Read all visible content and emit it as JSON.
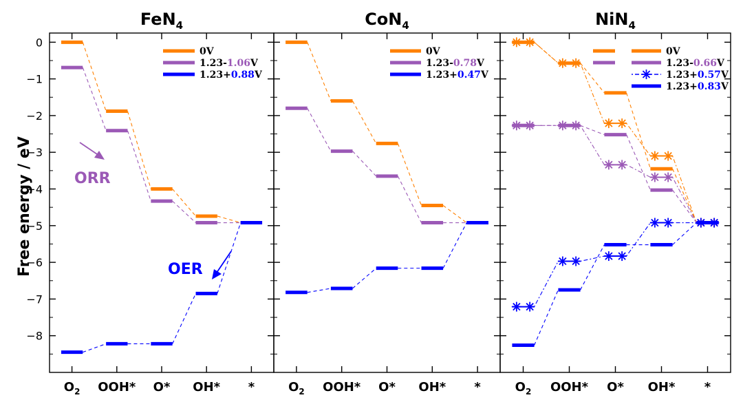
{
  "figure": {
    "ylabel": "Free energy / eV"
  },
  "chart_data": [
    {
      "type": "line",
      "title": {
        "main": "FeN",
        "sub": "4"
      },
      "categories": [
        {
          "main": "O",
          "sub": "2"
        },
        {
          "main": "OOH*",
          "sub": ""
        },
        {
          "main": "O*",
          "sub": ""
        },
        {
          "main": "OH*",
          "sub": ""
        },
        {
          "main": "*",
          "sub": ""
        }
      ],
      "ylim": [
        -9,
        0.25
      ],
      "yticks": [
        0,
        -1,
        -2,
        -3,
        -4,
        -5,
        -6,
        -7,
        -8
      ],
      "series": [
        {
          "name": {
            "prefix": "0V",
            "value": "",
            "suffix": ""
          },
          "color": "#ff8000",
          "marker": "bar",
          "values": [
            0,
            -1.88,
            -4.0,
            -4.74,
            -4.92
          ]
        },
        {
          "name": {
            "prefix": "1.23-",
            "value": "1.06",
            "suffix": "V"
          },
          "color": "#9b59b6",
          "marker": "bar",
          "values": [
            -0.69,
            -2.41,
            -4.33,
            -4.92,
            -4.92
          ]
        },
        {
          "name": {
            "prefix": "1.23+",
            "value": "0.88",
            "suffix": "V"
          },
          "color": "#0000ff",
          "marker": "bar",
          "values": [
            -8.45,
            -8.22,
            -8.22,
            -6.85,
            -4.92
          ]
        }
      ],
      "annotations": [
        {
          "text": "ORR",
          "color": "#9b59b6"
        },
        {
          "text": "OER",
          "color": "#0000ff"
        }
      ]
    },
    {
      "type": "line",
      "title": {
        "main": "CoN",
        "sub": "4"
      },
      "categories": [
        {
          "main": "O",
          "sub": "2"
        },
        {
          "main": "OOH*",
          "sub": ""
        },
        {
          "main": "O*",
          "sub": ""
        },
        {
          "main": "OH*",
          "sub": ""
        },
        {
          "main": "*",
          "sub": ""
        }
      ],
      "ylim": [
        -9,
        0.25
      ],
      "yticks": [
        0,
        -1,
        -2,
        -3,
        -4,
        -5,
        -6,
        -7,
        -8
      ],
      "series": [
        {
          "name": {
            "prefix": "0V",
            "value": "",
            "suffix": ""
          },
          "color": "#ff8000",
          "marker": "bar",
          "values": [
            0,
            -1.6,
            -2.76,
            -4.45,
            -4.92
          ]
        },
        {
          "name": {
            "prefix": "1.23-",
            "value": "0.78",
            "suffix": "V"
          },
          "color": "#9b59b6",
          "marker": "bar",
          "values": [
            -1.8,
            -2.97,
            -3.65,
            -4.92,
            -4.92
          ]
        },
        {
          "name": {
            "prefix": "1.23+",
            "value": "0.47",
            "suffix": "V"
          },
          "color": "#0000ff",
          "marker": "bar",
          "values": [
            -6.82,
            -6.71,
            -6.16,
            -6.16,
            -4.92
          ]
        }
      ],
      "annotations": []
    },
    {
      "type": "line",
      "title": {
        "main": "NiN",
        "sub": "4"
      },
      "categories": [
        {
          "main": "O",
          "sub": "2"
        },
        {
          "main": "OOH*",
          "sub": ""
        },
        {
          "main": "O*",
          "sub": ""
        },
        {
          "main": "OH*",
          "sub": ""
        },
        {
          "main": "*",
          "sub": ""
        }
      ],
      "ylim": [
        -9,
        0.25
      ],
      "yticks": [
        0,
        -1,
        -2,
        -3,
        -4,
        -5,
        -6,
        -7,
        -8
      ],
      "series": [
        {
          "name": {
            "prefix": "0V",
            "value": "",
            "suffix": ""
          },
          "color": "#ff8000",
          "marker": "bar",
          "values": [
            0,
            -0.57,
            -1.38,
            -3.45,
            -4.92
          ]
        },
        {
          "name": {
            "prefix": "0V",
            "value": "",
            "suffix": ""
          },
          "color": "#ff8000",
          "marker": "star",
          "values": [
            0,
            -0.57,
            -2.21,
            -3.1,
            -4.92
          ]
        },
        {
          "name": {
            "prefix": "1.23-",
            "value": "0.66",
            "suffix": "V"
          },
          "color": "#9b59b6",
          "marker": "bar",
          "values": [
            -2.27,
            -2.27,
            -2.52,
            -4.03,
            -4.92
          ]
        },
        {
          "name": {
            "prefix": "1.23-",
            "value": "0.66",
            "suffix": "V"
          },
          "color": "#9b59b6",
          "marker": "star",
          "values": [
            -2.27,
            -2.27,
            -3.34,
            -3.68,
            -4.92
          ]
        },
        {
          "name": {
            "prefix": "1.23+",
            "value": "0.57",
            "suffix": "V"
          },
          "color": "#0000ff",
          "marker": "star",
          "values": [
            -7.21,
            -5.97,
            -5.83,
            -4.92,
            -4.92
          ]
        },
        {
          "name": {
            "prefix": "1.23+",
            "value": "0.83",
            "suffix": "V"
          },
          "color": "#0000ff",
          "marker": "bar",
          "values": [
            -8.26,
            -6.75,
            -5.52,
            -5.52,
            -4.92
          ]
        }
      ],
      "legend_entries": [
        0,
        2,
        4,
        5
      ],
      "annotations": []
    }
  ]
}
